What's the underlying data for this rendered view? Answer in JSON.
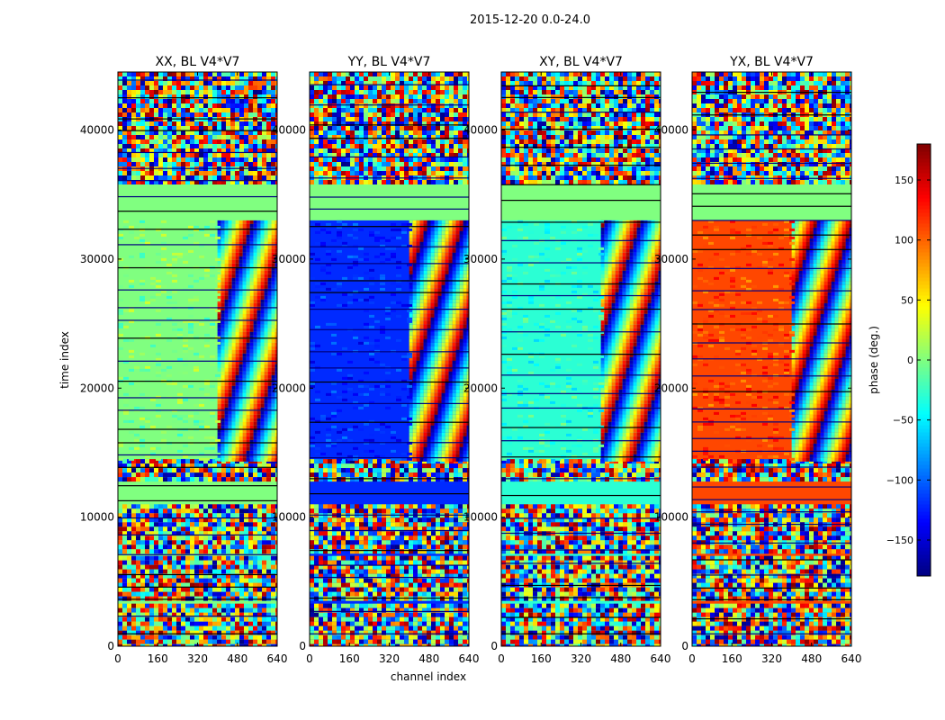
{
  "chart_data": {
    "type": "heatmap",
    "suptitle": "2015-12-20 0.0-24.0",
    "xlabel": "channel index",
    "ylabel": "time index",
    "xlim": [
      0,
      640
    ],
    "ylim": [
      0,
      44500
    ],
    "xticks": [
      0,
      160,
      320,
      480,
      640
    ],
    "yticks": [
      0,
      10000,
      20000,
      30000,
      40000
    ],
    "panels": [
      {
        "title": "XX, BL V4*V7",
        "base_phase": 0
      },
      {
        "title": "YY, BL V4*V7",
        "base_phase": -120
      },
      {
        "title": "XY, BL V4*V7",
        "base_phase": -30
      },
      {
        "title": "YX, BL V4*V7",
        "base_phase": 110
      }
    ],
    "colorbar": {
      "label": "phase (deg.)",
      "range": [
        -180,
        180
      ],
      "ticks": [
        -150,
        -100,
        -50,
        0,
        50,
        100,
        150
      ],
      "tick_labels": [
        "−150",
        "−100",
        "−50",
        "0",
        "50",
        "100",
        "150"
      ],
      "colormap": "jet"
    }
  }
}
